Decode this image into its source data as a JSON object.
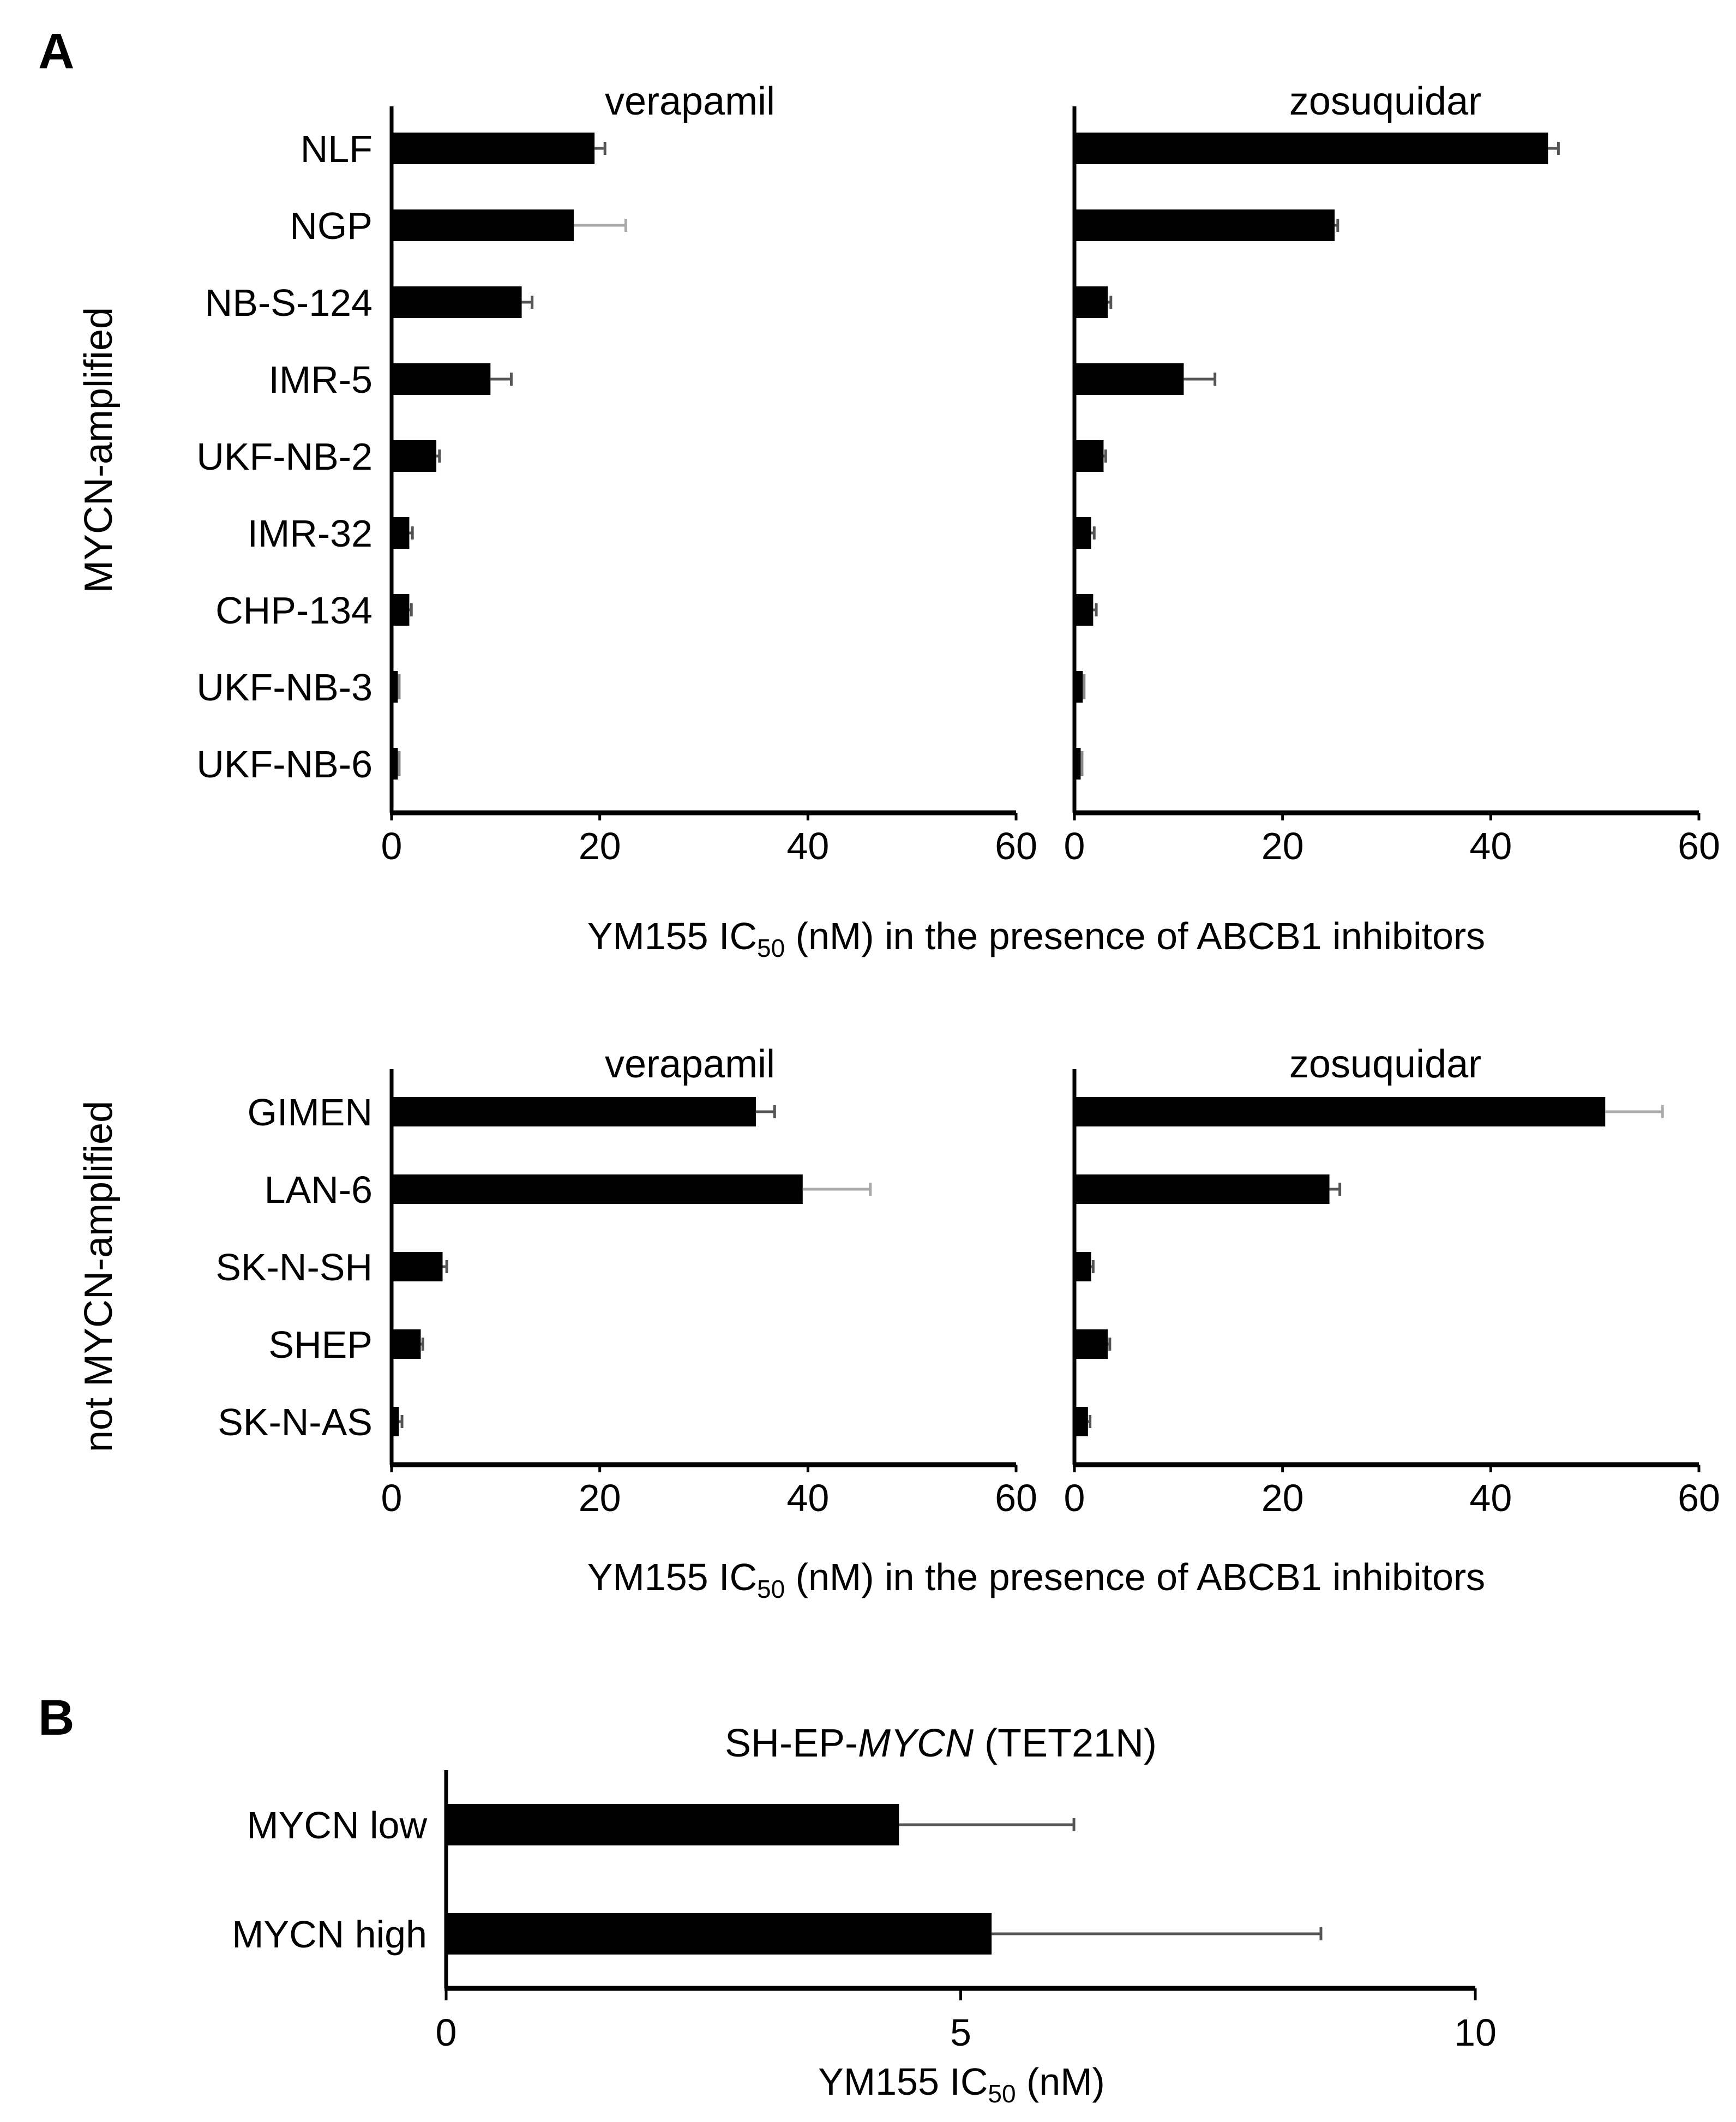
{
  "panel_a_label": "A",
  "panel_b_label": "B",
  "group_labels": {
    "amplified": "MYCN-amplified",
    "not_amplified": "not MYCN-amplified"
  },
  "xlabel_a": {
    "pre": "YM155 IC",
    "sub": "50",
    "post": " (nM) in the presence of ABCB1 inhibitors"
  },
  "xlabel_b": {
    "pre": "YM155 IC",
    "sub": "50",
    "post": " (nM)"
  },
  "title_b": {
    "pre": "SH-EP-",
    "italic": "MYCN",
    "post": " (TET21N)"
  },
  "colors": {
    "bar": "#000000",
    "axis": "#000000",
    "error": "#555555",
    "error_light": "#aaaaaa"
  },
  "chart_data": [
    {
      "id": "a-amp-verapamil",
      "type": "bar",
      "orientation": "horizontal",
      "title": "verapamil",
      "categories": [
        "NLF",
        "NGP",
        "NB-S-124",
        "IMR-5",
        "UKF-NB-2",
        "IMR-32",
        "CHP-134",
        "UKF-NB-3",
        "UKF-NB-6"
      ],
      "values": [
        19.5,
        17.5,
        12.5,
        9.5,
        4.3,
        1.7,
        1.7,
        0.6,
        0.6
      ],
      "errors": [
        1.0,
        5.0,
        1.0,
        2.0,
        0.3,
        0.3,
        0.2,
        0.1,
        0.1
      ],
      "xlim": [
        0,
        60
      ],
      "xticks": [
        0,
        20,
        40,
        60
      ]
    },
    {
      "id": "a-amp-zosuquidar",
      "type": "bar",
      "orientation": "horizontal",
      "title": "zosuquidar",
      "categories": [
        "NLF",
        "NGP",
        "NB-S-124",
        "IMR-5",
        "UKF-NB-2",
        "IMR-32",
        "CHP-134",
        "UKF-NB-3",
        "UKF-NB-6"
      ],
      "values": [
        45.5,
        25.0,
        3.2,
        10.5,
        2.8,
        1.6,
        1.8,
        0.8,
        0.6
      ],
      "errors": [
        1.0,
        0.3,
        0.3,
        3.0,
        0.2,
        0.3,
        0.3,
        0.1,
        0.1
      ],
      "xlim": [
        0,
        60
      ],
      "xticks": [
        0,
        20,
        40,
        60
      ]
    },
    {
      "id": "a-notamp-verapamil",
      "type": "bar",
      "orientation": "horizontal",
      "title": "verapamil",
      "categories": [
        "GIMEN",
        "LAN-6",
        "SK-N-SH",
        "SHEP",
        "SK-N-AS"
      ],
      "values": [
        35.0,
        39.5,
        4.9,
        2.8,
        0.7
      ],
      "errors": [
        1.8,
        6.5,
        0.4,
        0.2,
        0.3
      ],
      "xlim": [
        0,
        60
      ],
      "xticks": [
        0,
        20,
        40,
        60
      ]
    },
    {
      "id": "a-notamp-zosuquidar",
      "type": "bar",
      "orientation": "horizontal",
      "title": "zosuquidar",
      "categories": [
        "GIMEN",
        "LAN-6",
        "SK-N-SH",
        "SHEP",
        "SK-N-AS"
      ],
      "values": [
        51.0,
        24.5,
        1.6,
        3.2,
        1.3
      ],
      "errors": [
        5.5,
        1.0,
        0.2,
        0.2,
        0.2
      ],
      "xlim": [
        0,
        60
      ],
      "xticks": [
        0,
        20,
        40,
        60
      ]
    },
    {
      "id": "b-tet21n",
      "type": "bar",
      "orientation": "horizontal",
      "title": "SH-EP-MYCN (TET21N)",
      "categories": [
        "MYCN low",
        "MYCN high"
      ],
      "values": [
        4.4,
        5.3
      ],
      "errors": [
        1.7,
        3.2
      ],
      "xlim": [
        0,
        10
      ],
      "xticks": [
        0,
        5,
        10
      ]
    }
  ]
}
